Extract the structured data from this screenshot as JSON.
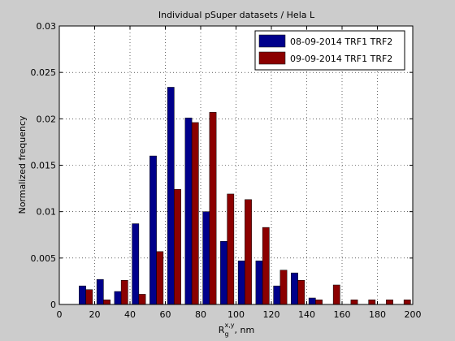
{
  "chart_data": {
    "type": "bar",
    "title": "Individual pSuper datasets / Hela L",
    "xlabel": {
      "main": "R",
      "sub": "g",
      "sup": "x,y",
      "suffix": ", nm"
    },
    "ylabel": "Normalized frequency",
    "xlim": [
      0,
      200
    ],
    "ylim": [
      0,
      0.03
    ],
    "xticks": [
      0,
      20,
      40,
      60,
      80,
      100,
      120,
      140,
      160,
      180,
      200
    ],
    "yticks": [
      0,
      0.005,
      0.01,
      0.015,
      0.02,
      0.025,
      0.03
    ],
    "xtick_labels": [
      "0",
      "20",
      "40",
      "60",
      "80",
      "100",
      "120",
      "140",
      "160",
      "180",
      "200"
    ],
    "ytick_labels": [
      "0",
      "0.005",
      "0.01",
      "0.015",
      "0.02",
      "0.025",
      "0.03"
    ],
    "grid": true,
    "legend_position": "top-right",
    "bin_width": 9.5,
    "categories": [
      15,
      25,
      35,
      45,
      55,
      65,
      75,
      85,
      95,
      105,
      115,
      125,
      135,
      145,
      155,
      165,
      175,
      185,
      195
    ],
    "series": [
      {
        "name": "08-09-2014 TRF1 TRF2",
        "color": "#00008b",
        "values": [
          0.002,
          0.0027,
          0.0014,
          0.0087,
          0.016,
          0.0234,
          0.0201,
          0.01,
          0.0068,
          0.0047,
          0.0047,
          0.002,
          0.0034,
          0.0007,
          0,
          0,
          0,
          0,
          0
        ]
      },
      {
        "name": "09-09-2014 TRF1 TRF2",
        "color": "#8b0000",
        "values": [
          0.0016,
          0.0005,
          0.0026,
          0.0011,
          0.0057,
          0.0124,
          0.0196,
          0.0207,
          0.0119,
          0.0113,
          0.0083,
          0.0037,
          0.0026,
          0.0005,
          0.0021,
          0.0005,
          0.0005,
          0.0005,
          0.0005
        ]
      }
    ]
  }
}
